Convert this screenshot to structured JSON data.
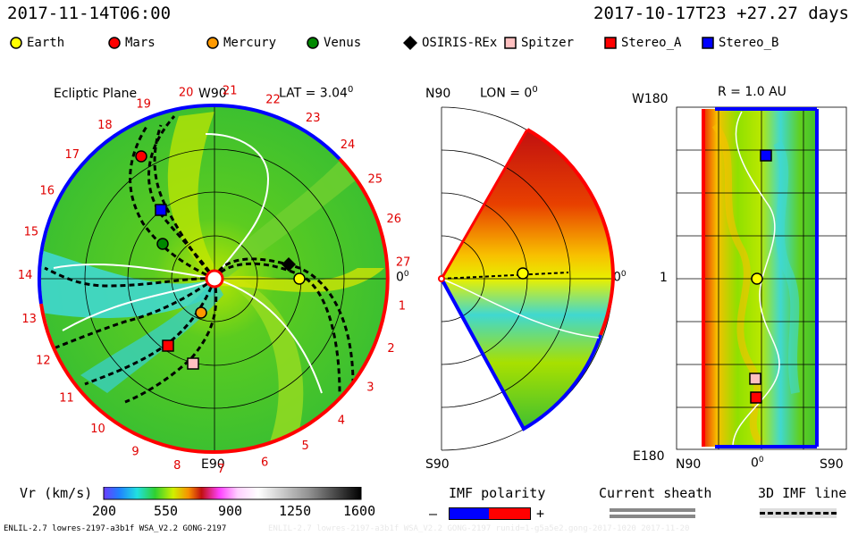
{
  "header": {
    "time_left": "2017-11-14T06:00",
    "time_right": "2017-10-17T23 +27.27 days"
  },
  "legend": [
    {
      "label": "Earth",
      "color": "#ffff00",
      "shape": "circle",
      "icon": "earth-icon"
    },
    {
      "label": "Mars",
      "color": "#ff0000",
      "shape": "circle",
      "icon": "mars-icon"
    },
    {
      "label": "Mercury",
      "color": "#ff9900",
      "shape": "circle",
      "icon": "mercury-icon"
    },
    {
      "label": "Venus",
      "color": "#008800",
      "shape": "circle",
      "icon": "venus-icon"
    },
    {
      "label": "OSIRIS-REx",
      "color": "#000000",
      "shape": "diamond",
      "icon": "osiris-rex-icon"
    },
    {
      "label": "Spitzer",
      "color": "#ffc0c0",
      "shape": "square",
      "icon": "spitzer-icon"
    },
    {
      "label": "Stereo_A",
      "color": "#ff0000",
      "shape": "square",
      "icon": "stereo-a-icon"
    },
    {
      "label": "Stereo_B",
      "color": "#0000ff",
      "shape": "square",
      "icon": "stereo-b-icon"
    }
  ],
  "panels": {
    "ecliptic": {
      "title": "Ecliptic Plane",
      "w90": "W90",
      "e90": "E90",
      "zero": "0",
      "lat": "LAT = 3.04",
      "deg": "0",
      "day_ticks": [
        "19",
        "20",
        "21",
        "22",
        "23",
        "24",
        "25",
        "26",
        "27",
        "1",
        "2",
        "3",
        "4",
        "5",
        "6",
        "7",
        "8",
        "9",
        "10",
        "11",
        "12",
        "13",
        "14",
        "15",
        "16",
        "17",
        "18"
      ]
    },
    "meridional": {
      "n90": "N90",
      "s90": "S90",
      "lon": "LON = 0",
      "deg": "0",
      "zero": "0"
    },
    "mercator": {
      "r_label": "R = 1.0 AU",
      "w180": "W180",
      "e180": "E180",
      "one": "1",
      "n90": "N90",
      "s90": "S90",
      "zero": "0",
      "deg": "0"
    }
  },
  "colorbar": {
    "label": "Vr (km/s)",
    "ticks": [
      "200",
      "550",
      "900",
      "1250",
      "1600"
    ]
  },
  "imf": {
    "label": "IMF polarity",
    "minus": "–",
    "plus": "+"
  },
  "sheath": {
    "label": "Current sheath"
  },
  "imf3d": {
    "label": "3D IMF line"
  },
  "footer": {
    "left": "ENLIL-2.7 lowres-2197-a3b1f WSA_V2.2 GONG-2197",
    "right": "ENLIL-2.7 lowres-2197-a3b1f WSA_V2.2 GONG-2197 runid=1-g5a5e2.gong-2017-1020 2017-11-20"
  },
  "chart_data": {
    "type": "heatmap",
    "variable": "Vr (km/s)",
    "colorbar_range": [
      200,
      1600
    ],
    "colorbar_ticks": [
      200,
      550,
      900,
      1250,
      1600
    ],
    "date": "2017-11-14T06:00",
    "run_start": "2017-10-17T23",
    "elapsed": "+27.27 days",
    "ecliptic_latitude_deg": 3.04,
    "meridional_longitude_deg": 0,
    "mercator_radius_au": 1.0,
    "bodies": [
      {
        "name": "Earth"
      },
      {
        "name": "Mars"
      },
      {
        "name": "Mercury"
      },
      {
        "name": "Venus"
      },
      {
        "name": "OSIRIS-REx"
      },
      {
        "name": "Spitzer"
      },
      {
        "name": "Stereo_A"
      },
      {
        "name": "Stereo_B"
      }
    ]
  }
}
